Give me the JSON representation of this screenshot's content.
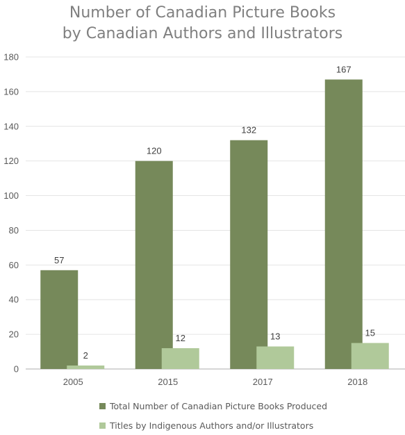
{
  "chart_data": {
    "type": "bar",
    "title_lines": [
      "Number of Canadian Picture Books",
      "by Canadian Authors and Illustrators"
    ],
    "categories": [
      "2005",
      "2015",
      "2017",
      "2018"
    ],
    "series": [
      {
        "name": "Total Number of Canadian Picture Books Produced",
        "values": [
          57,
          120,
          132,
          167
        ],
        "color": "#76895a"
      },
      {
        "name": "Titles by Indigenous Authors and/or Illustrators",
        "values": [
          2,
          12,
          13,
          15
        ],
        "color": "#b0c99a"
      }
    ],
    "ylim": [
      0,
      180
    ],
    "yticks": [
      0,
      20,
      40,
      60,
      80,
      100,
      120,
      140,
      160,
      180
    ],
    "grid": true,
    "data_labels": true,
    "legend_position": "bottom"
  }
}
